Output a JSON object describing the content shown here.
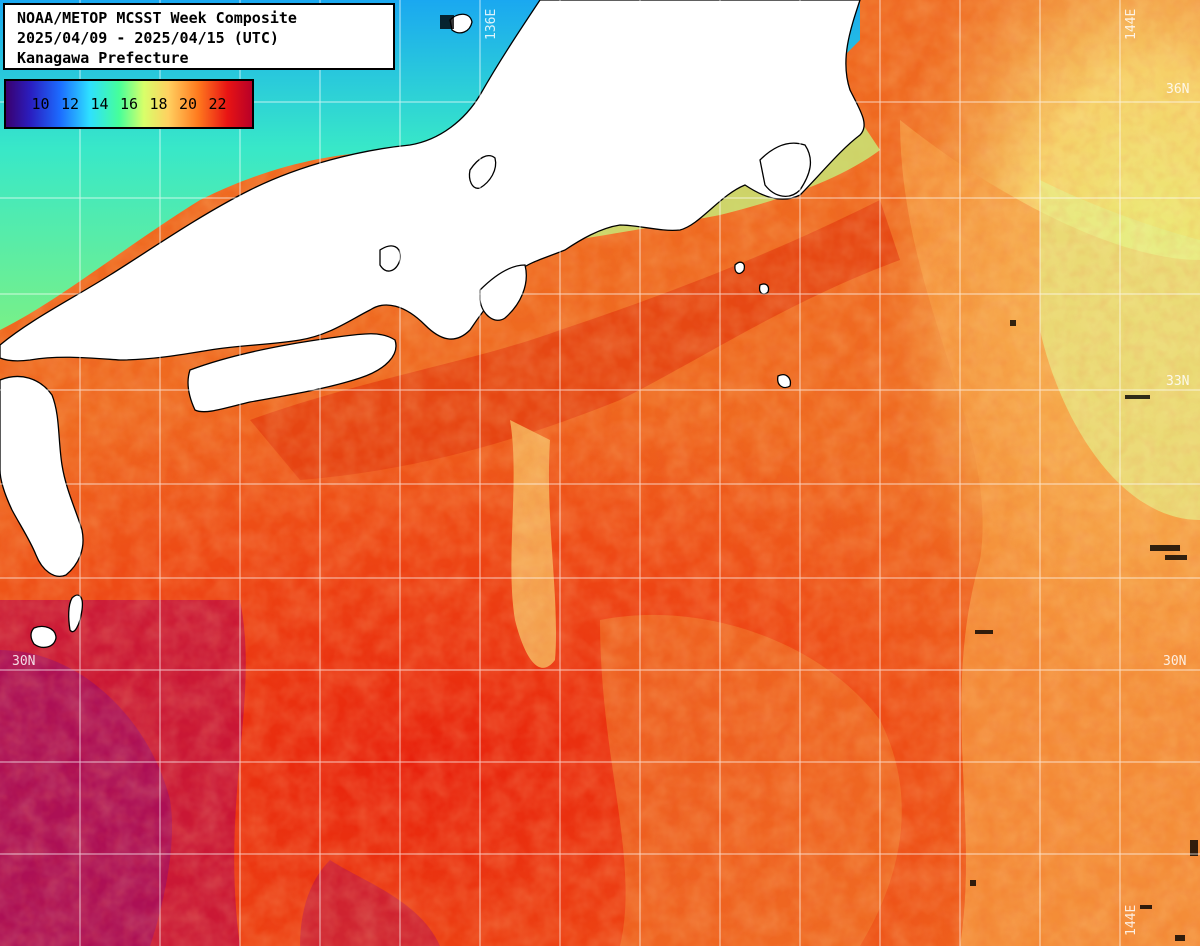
{
  "title": {
    "line1": "NOAA/METOP MCSST Week Composite",
    "line2": "2025/04/09 - 2025/04/15 (UTC)",
    "line3": "Kanagawa Prefecture"
  },
  "legend": {
    "ticks": [
      "10",
      "12",
      "14",
      "16",
      "18",
      "20",
      "22"
    ]
  },
  "grid_labels": {
    "lat_36_right": "36N",
    "lat_33_right": "33N",
    "lat_30_left": "30N",
    "lat_30_right": "30N",
    "lon_136_top": "136E",
    "lon_144_top": "144E",
    "lon_144_bottom": "144E"
  },
  "colors": {
    "land": "#ffffff",
    "coast": "#000000",
    "grid": "#ffffff"
  }
}
